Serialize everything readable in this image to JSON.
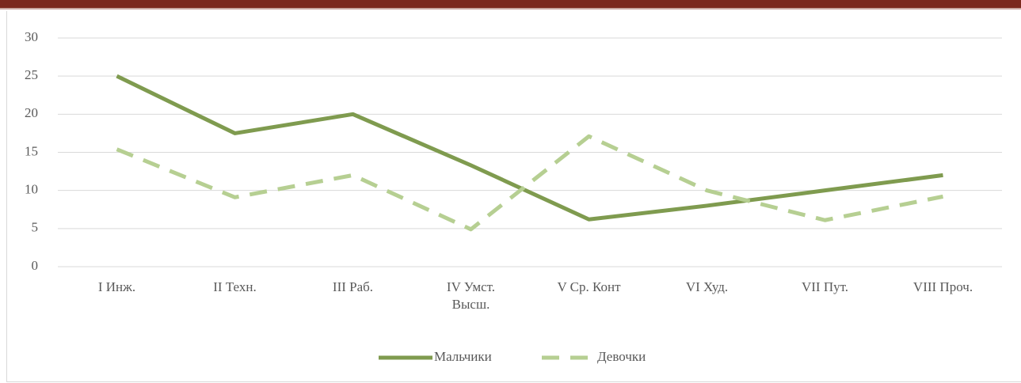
{
  "chart_data": {
    "type": "line",
    "categories": [
      "I Инж.",
      "II Техн.",
      "III Раб.",
      "IV Умст. Высш.",
      "V Ср. Конт",
      "VI Худ.",
      "VII Пут.",
      "VIII Проч."
    ],
    "series": [
      {
        "name": "Мальчики",
        "color": "#7f9b4f",
        "dash": false,
        "values": [
          25,
          17.5,
          20,
          13.3,
          6.2,
          8,
          10,
          12
        ]
      },
      {
        "name": "Девочки",
        "color": "#b6cf92",
        "dash": true,
        "values": [
          15.4,
          9.1,
          12,
          4.9,
          17.1,
          10,
          6.1,
          9.2
        ]
      }
    ],
    "ylim": [
      0,
      30
    ],
    "yticks": [
      0,
      5,
      10,
      15,
      20,
      25,
      30
    ],
    "grid": true,
    "legend": "bottom"
  }
}
